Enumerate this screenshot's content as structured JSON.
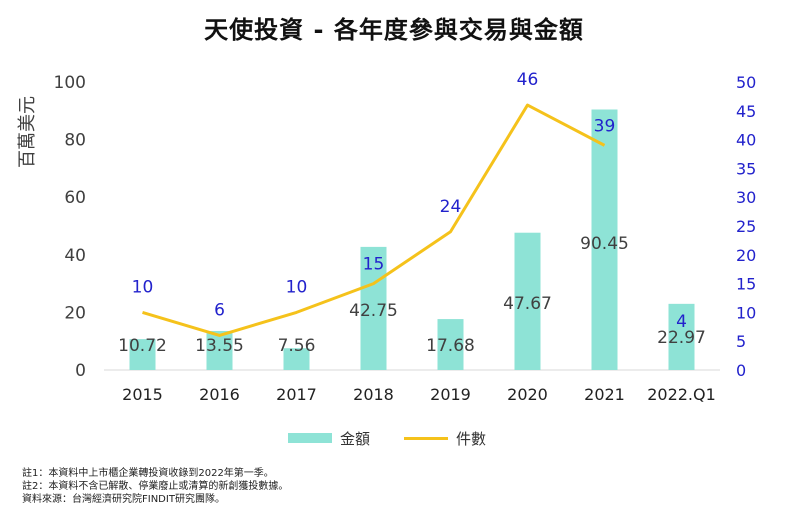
{
  "chart_data": {
    "type": "bar",
    "title": "天使投資 - 各年度參與交易與金額",
    "ylabel": "百萬美元",
    "ylim": [
      0,
      100
    ],
    "y2lim": [
      0,
      50
    ],
    "yticks": [
      0,
      20,
      40,
      60,
      80,
      100
    ],
    "y2ticks": [
      0,
      5,
      10,
      15,
      20,
      25,
      30,
      35,
      40,
      45,
      50
    ],
    "categories": [
      "2015",
      "2016",
      "2017",
      "2018",
      "2019",
      "2020",
      "2021",
      "2022.Q1"
    ],
    "series": [
      {
        "name": "金額",
        "type": "bar",
        "axis": "left",
        "values": [
          10.72,
          13.55,
          7.56,
          42.75,
          17.68,
          47.67,
          90.45,
          22.97
        ],
        "labels": [
          "10.72",
          "13.55",
          "7.56",
          "42.75",
          "17.68",
          "47.67",
          "90.45",
          "22.97"
        ]
      },
      {
        "name": "件數",
        "type": "line",
        "axis": "right",
        "values": [
          10,
          6,
          10,
          15,
          24,
          46,
          39,
          null
        ],
        "labels": [
          "10",
          "6",
          "10",
          "15",
          "24",
          "46",
          "39",
          "4"
        ],
        "label_values": [
          10,
          6,
          10,
          15,
          24,
          46,
          39,
          4
        ]
      }
    ],
    "grid": false,
    "legend_position": "bottom",
    "colors": {
      "bar": "#8ee3d6",
      "line": "#f5c21b",
      "right_axis": "#2222cc",
      "text": "#404040"
    }
  },
  "notes": [
    "註1：本資料中上市櫃企業轉投資收錄到2022年第一季。",
    "註2：本資料不含已解散、停業廢止或清算的新創獲投數據。",
    "資料來源：台灣經濟研究院FINDIT研究團隊。"
  ]
}
